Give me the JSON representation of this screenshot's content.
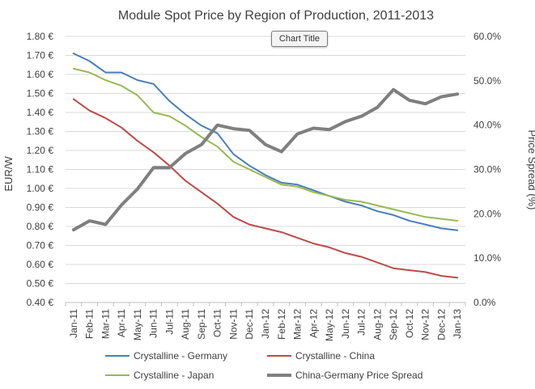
{
  "chart_title_button": "Chart Title",
  "chart_data": {
    "type": "line",
    "title": "Module Spot Price by Region of Production, 2011-2013",
    "ylabel": "EUR/W",
    "y2label": "Price Spread (%)",
    "ylim": [
      0.4,
      1.8
    ],
    "y2lim": [
      0.0,
      0.6
    ],
    "yticks": [
      "1.80 €",
      "1.70 €",
      "1.60 €",
      "1.50 €",
      "1.40 €",
      "1.30 €",
      "1.20 €",
      "1.10 €",
      "1.00 €",
      "0.90 €",
      "0.80 €",
      "0.70 €",
      "0.60 €",
      "0.50 €",
      "0.40 €"
    ],
    "y2ticks": [
      "60.0%",
      "50.0%",
      "40.0%",
      "30.0%",
      "20.0%",
      "10.0%",
      "0.0%"
    ],
    "grid": true,
    "legend_position": "bottom",
    "categories": [
      "Jan-11",
      "Feb-11",
      "Mar-11",
      "Apr-11",
      "May-11",
      "Jun-11",
      "Jul-11",
      "Aug-11",
      "Sep-11",
      "Oct-11",
      "Nov-11",
      "Dec-11",
      "Jan-12",
      "Feb-12",
      "Mar-12",
      "Apr-12",
      "May-12",
      "Jun-12",
      "Jul-12",
      "Aug-12",
      "Sep-12",
      "Oct-12",
      "Nov-12",
      "Dec-12",
      "Jan-13"
    ],
    "series": [
      {
        "name": "Crystalline - Germany",
        "color": "#4a7ebb",
        "axis": "left",
        "values": [
          1.71,
          1.67,
          1.61,
          1.61,
          1.57,
          1.55,
          1.46,
          1.39,
          1.33,
          1.29,
          1.18,
          1.12,
          1.07,
          1.03,
          1.02,
          0.99,
          0.96,
          0.93,
          0.91,
          0.88,
          0.86,
          0.83,
          0.81,
          0.79,
          0.78
        ]
      },
      {
        "name": "Crystalline - China",
        "color": "#be4b48",
        "axis": "left",
        "values": [
          1.47,
          1.41,
          1.37,
          1.32,
          1.25,
          1.19,
          1.12,
          1.04,
          0.98,
          0.92,
          0.85,
          0.81,
          0.79,
          0.77,
          0.74,
          0.71,
          0.69,
          0.66,
          0.64,
          0.61,
          0.58,
          0.57,
          0.56,
          0.54,
          0.53
        ]
      },
      {
        "name": "Crystalline - Japan",
        "color": "#98b954",
        "axis": "left",
        "values": [
          1.63,
          1.61,
          1.57,
          1.54,
          1.49,
          1.4,
          1.38,
          1.33,
          1.27,
          1.22,
          1.14,
          1.1,
          1.06,
          1.02,
          1.01,
          0.98,
          0.96,
          0.94,
          0.93,
          0.91,
          0.89,
          0.87,
          0.85,
          0.84,
          0.83
        ]
      },
      {
        "name": "China-Germany Price Spread",
        "color": "#7f7f7f",
        "axis": "right",
        "values": [
          0.164,
          0.184,
          0.176,
          0.22,
          0.256,
          0.304,
          0.304,
          0.336,
          0.356,
          0.4,
          0.392,
          0.388,
          0.356,
          0.34,
          0.38,
          0.393,
          0.39,
          0.408,
          0.42,
          0.44,
          0.48,
          0.456,
          0.448,
          0.464,
          0.47
        ]
      }
    ]
  }
}
